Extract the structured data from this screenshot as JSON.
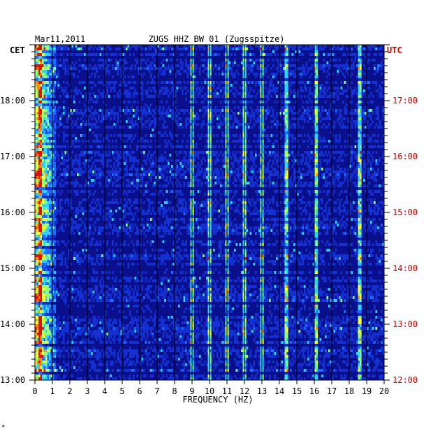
{
  "header": {
    "date": "Mar11,2011",
    "station": "ZUGS HHZ BW 01 (Zugsspitze)",
    "tz_left": "CET",
    "tz_right": "UTC"
  },
  "colors": {
    "background": "#ffffff",
    "plot_bg": "#0a0f8c",
    "right_axis_text": "#cc0000",
    "left_axis_text": "#000000"
  },
  "chart_data": {
    "type": "heatmap",
    "title": "ZUGS HHZ BW 01 (Zugsspitze)",
    "xlabel": "FREQUENCY (HZ)",
    "ylabel": "",
    "xlim": [
      0,
      20
    ],
    "x_ticks": [
      "0",
      "1",
      "2",
      "3",
      "4",
      "5",
      "6",
      "7",
      "8",
      "9",
      "10",
      "11",
      "12",
      "13",
      "14",
      "15",
      "16",
      "17",
      "18",
      "19",
      "20"
    ],
    "y_time_range_cet": [
      "13:00",
      "18:37"
    ],
    "y_ticks_left_cet": [
      "18:00",
      "17:00",
      "16:00",
      "15:00",
      "14:00",
      "13:00"
    ],
    "y_ticks_right_utc": [
      "17:00",
      "16:00",
      "15:00",
      "14:00",
      "13:00",
      "12:00"
    ],
    "colormap": [
      "#0a0f8c",
      "#1530d0",
      "#1e6cff",
      "#2fd0ff",
      "#90ff70",
      "#ffff30",
      "#ff8a00",
      "#e01010"
    ],
    "prominent_frequencies_hz": [
      0.3,
      9.0,
      10.0,
      11.0,
      12.0,
      13.0,
      14.4,
      16.1,
      18.6
    ],
    "notes": "Spectrogram: frequency on x-axis, time on y-axis; strong energy below 1 Hz and a persistent line near 9 Hz."
  },
  "footer_mark": "*"
}
